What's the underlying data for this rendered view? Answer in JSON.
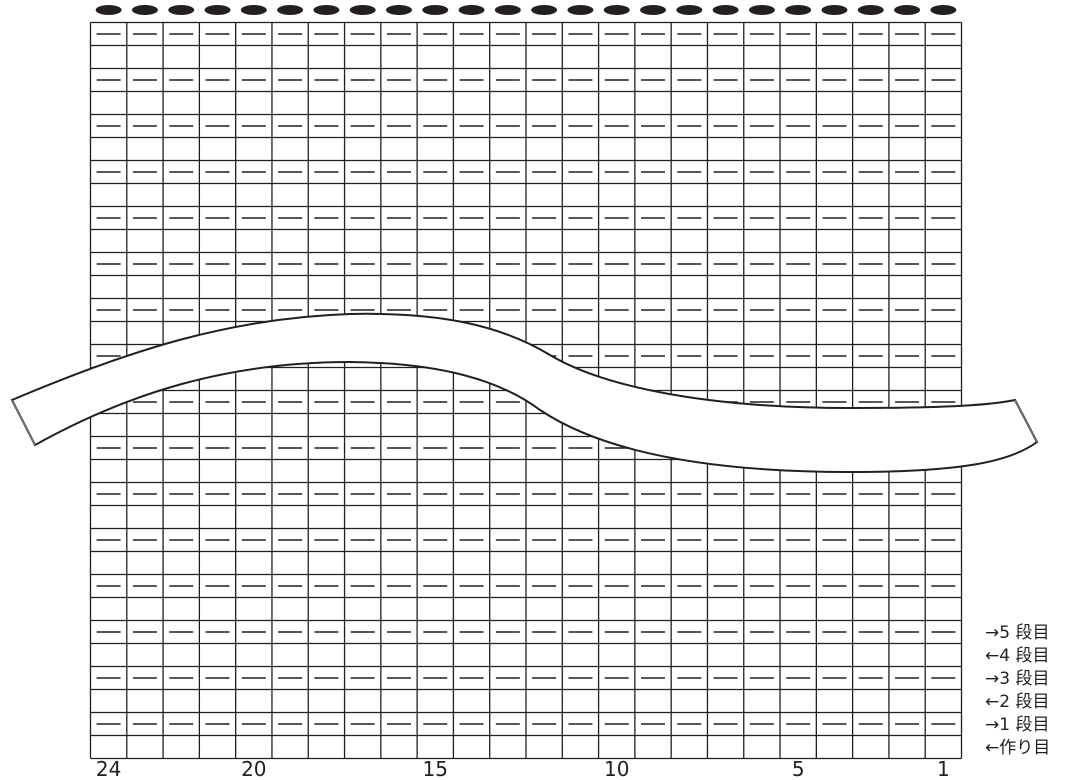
{
  "chart": {
    "columns": 24,
    "rows": 32,
    "stitch_symbol": "—",
    "bind_off_symbol": "●",
    "purl_rows": "every other row (rows 1,3,5,... from bottom)",
    "break_symbol": "wavy-break-band"
  },
  "column_labels": [
    "24",
    "20",
    "15",
    "10",
    "5",
    "1"
  ],
  "column_label_stitches": [
    24,
    20,
    15,
    10,
    5,
    1
  ],
  "row_labels": [
    "→5 段目",
    "←4 段目",
    "→3 段目",
    "←2 段目",
    "→1 段目",
    "←作り目"
  ],
  "colors": {
    "line": "#231f20",
    "background": "#ffffff"
  }
}
